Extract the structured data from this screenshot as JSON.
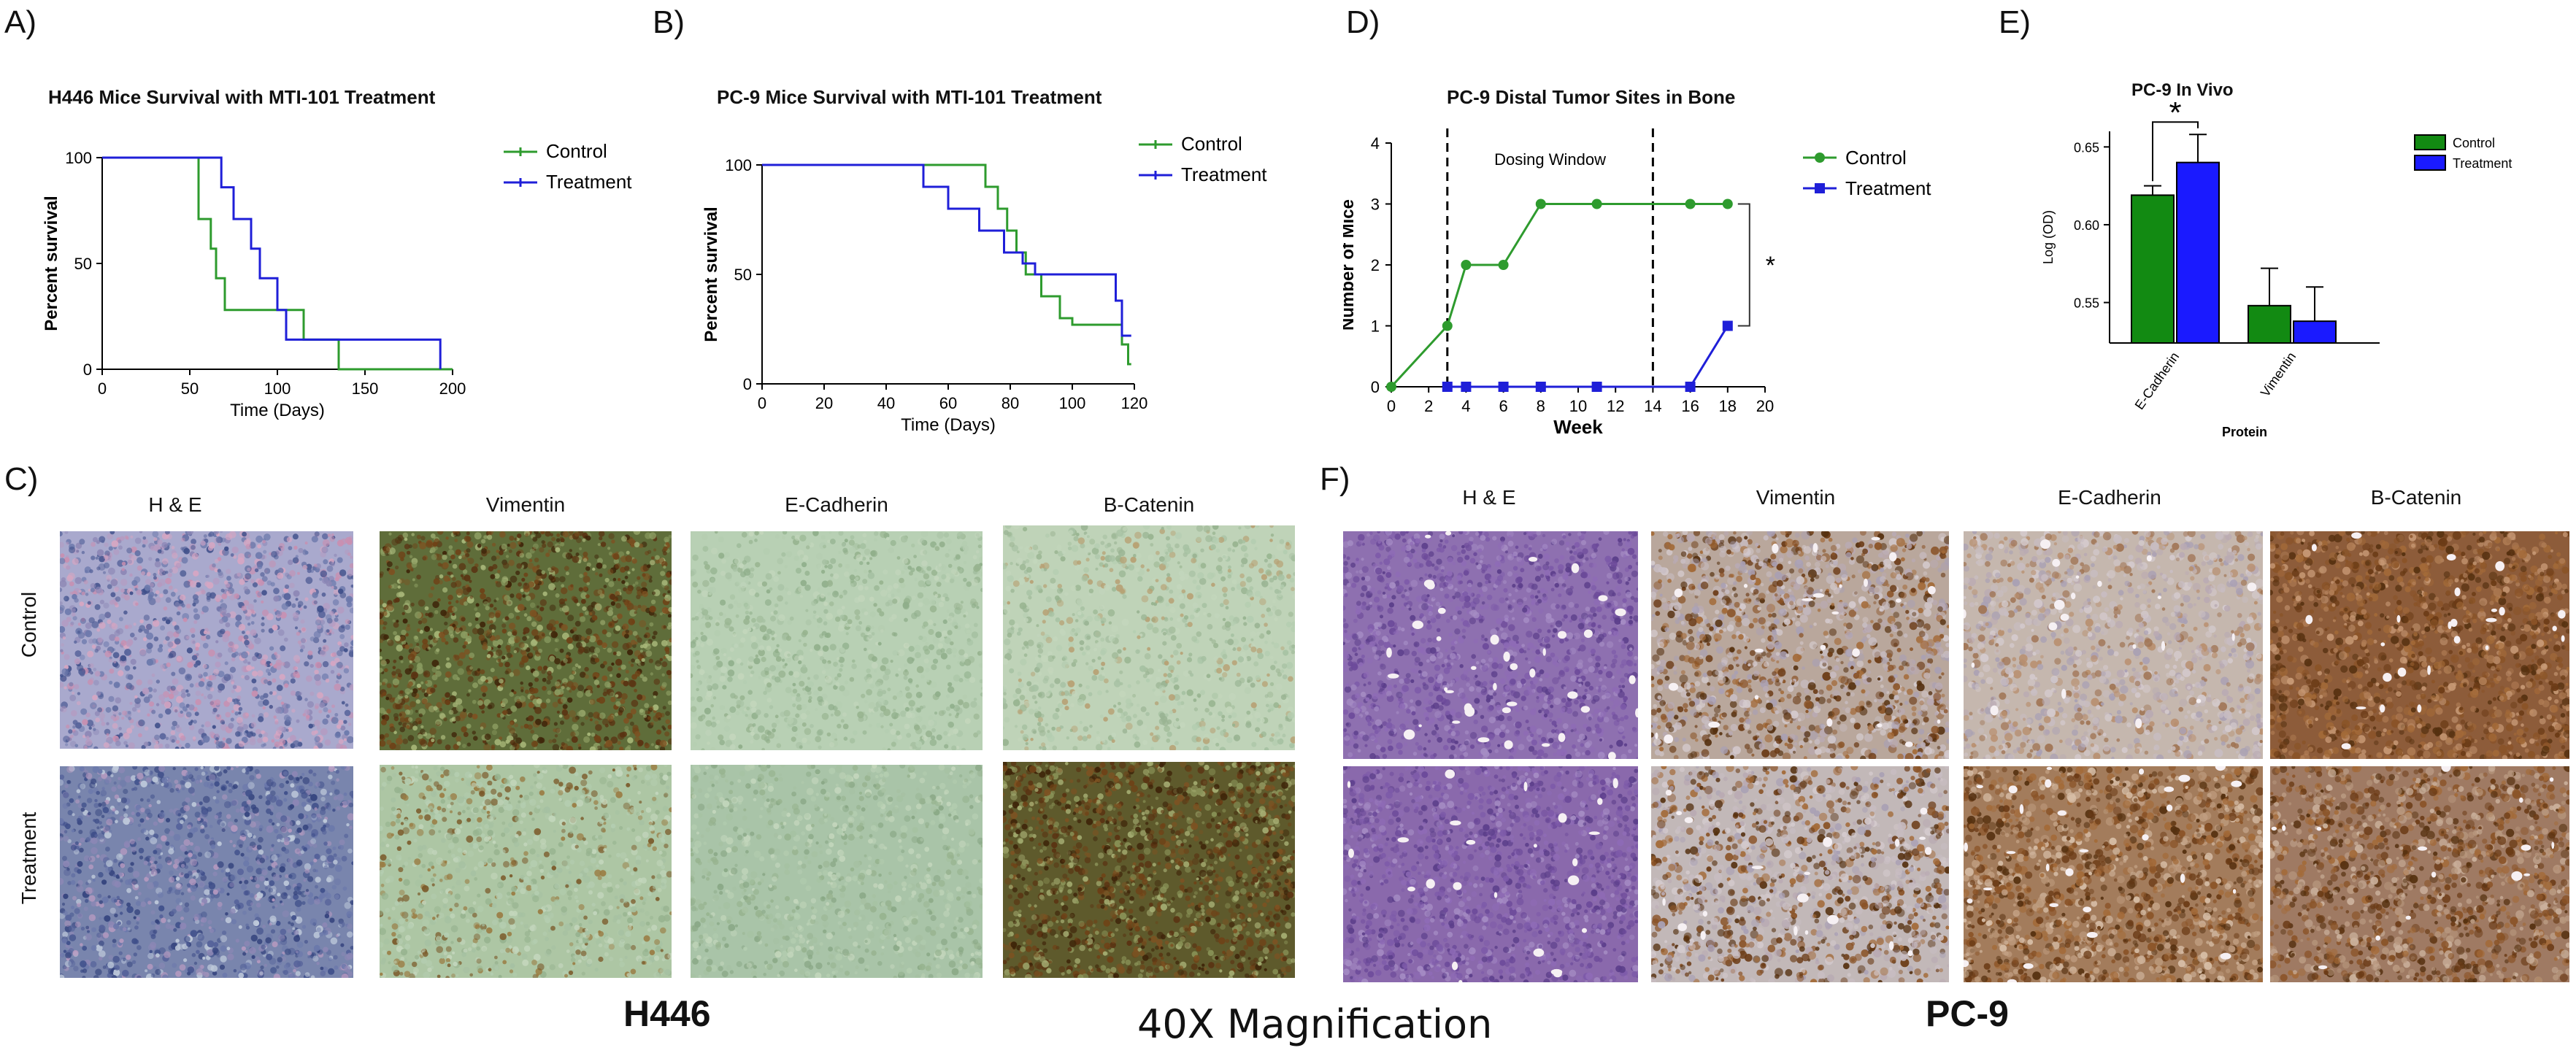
{
  "panels": {
    "A": {
      "letter": "A)",
      "title": "H446 Mice Survival with MTI-101 Treatment"
    },
    "B": {
      "letter": "B)",
      "title": "PC-9 Mice Survival with MTI-101 Treatment"
    },
    "D": {
      "letter": "D)",
      "title": "PC-9 Distal Tumor Sites in Bone"
    },
    "E": {
      "letter": "E)",
      "title": "PC-9 In Vivo"
    },
    "C": {
      "letter": "C)"
    },
    "F": {
      "letter": "F)"
    }
  },
  "colors": {
    "control": "#2e9b2e",
    "treatment": "#1f1fd8",
    "bar_control": "#128a12",
    "bar_treatment": "#1a1aff"
  },
  "chart_data": [
    {
      "id": "A",
      "type": "line",
      "title": "H446 Mice Survival with MTI-101 Treatment",
      "xlabel": "Time (Days)",
      "ylabel": "Percent survival",
      "xlim": [
        0,
        200
      ],
      "ylim": [
        0,
        100
      ],
      "xticks": [
        0,
        50,
        100,
        150,
        200
      ],
      "yticks": [
        0,
        50,
        100
      ],
      "legend_position": "right",
      "series": [
        {
          "name": "Control",
          "step": [
            [
              0,
              100
            ],
            [
              55,
              100
            ],
            [
              55,
              71
            ],
            [
              62,
              71
            ],
            [
              62,
              57
            ],
            [
              65,
              57
            ],
            [
              65,
              43
            ],
            [
              70,
              43
            ],
            [
              70,
              28
            ],
            [
              115,
              28
            ],
            [
              115,
              14
            ],
            [
              135,
              14
            ],
            [
              135,
              0
            ],
            [
              200,
              0
            ]
          ]
        },
        {
          "name": "Treatment",
          "step": [
            [
              0,
              100
            ],
            [
              68,
              100
            ],
            [
              68,
              86
            ],
            [
              75,
              86
            ],
            [
              75,
              71
            ],
            [
              85,
              71
            ],
            [
              85,
              57
            ],
            [
              90,
              57
            ],
            [
              90,
              43
            ],
            [
              100,
              43
            ],
            [
              100,
              28
            ],
            [
              105,
              28
            ],
            [
              105,
              14
            ],
            [
              193,
              14
            ],
            [
              193,
              0
            ]
          ]
        }
      ]
    },
    {
      "id": "B",
      "type": "line",
      "title": "PC-9 Mice Survival with MTI-101 Treatment",
      "xlabel": "Time (Days)",
      "ylabel": "Percent survival",
      "xlim": [
        0,
        120
      ],
      "ylim": [
        0,
        100
      ],
      "xticks": [
        0,
        20,
        40,
        60,
        80,
        100,
        120
      ],
      "yticks": [
        0,
        50,
        100
      ],
      "legend_position": "right",
      "series": [
        {
          "name": "Control",
          "step": [
            [
              0,
              100
            ],
            [
              72,
              100
            ],
            [
              72,
              90
            ],
            [
              76,
              90
            ],
            [
              76,
              80
            ],
            [
              79,
              80
            ],
            [
              79,
              70
            ],
            [
              82,
              70
            ],
            [
              82,
              60
            ],
            [
              85,
              60
            ],
            [
              85,
              50
            ],
            [
              90,
              50
            ],
            [
              90,
              40
            ],
            [
              96,
              40
            ],
            [
              96,
              30
            ],
            [
              100,
              30
            ],
            [
              100,
              27
            ],
            [
              116,
              27
            ],
            [
              116,
              18
            ],
            [
              118,
              18
            ],
            [
              118,
              9
            ],
            [
              119,
              9
            ]
          ]
        },
        {
          "name": "Treatment",
          "step": [
            [
              0,
              100
            ],
            [
              52,
              100
            ],
            [
              52,
              90
            ],
            [
              60,
              90
            ],
            [
              60,
              80
            ],
            [
              70,
              80
            ],
            [
              70,
              70
            ],
            [
              78,
              70
            ],
            [
              78,
              60
            ],
            [
              84,
              60
            ],
            [
              84,
              55
            ],
            [
              88,
              55
            ],
            [
              88,
              50
            ],
            [
              114,
              50
            ],
            [
              114,
              38
            ],
            [
              116,
              38
            ],
            [
              116,
              22
            ],
            [
              119,
              22
            ]
          ]
        }
      ]
    },
    {
      "id": "D",
      "type": "line",
      "title": "PC-9 Distal Tumor Sites in Bone",
      "xlabel": "Week",
      "ylabel": "Number of Mice",
      "xlim": [
        0,
        20
      ],
      "ylim": [
        0,
        4
      ],
      "xticks": [
        0,
        2,
        4,
        6,
        8,
        10,
        12,
        14,
        16,
        18,
        20
      ],
      "yticks": [
        0,
        1,
        2,
        3,
        4
      ],
      "legend_position": "right",
      "annotations": {
        "dosing_window": "Dosing Window",
        "dosing_start": 3,
        "dosing_end": 14,
        "significance": "*"
      },
      "series": [
        {
          "name": "Control",
          "x": [
            0,
            3,
            4,
            6,
            8,
            11,
            16,
            18
          ],
          "y": [
            0,
            1,
            2,
            2,
            3,
            3,
            3,
            3
          ]
        },
        {
          "name": "Treatment",
          "x": [
            3,
            4,
            6,
            8,
            11,
            16,
            18
          ],
          "y": [
            0,
            0,
            0,
            0,
            0,
            0,
            1
          ]
        }
      ]
    },
    {
      "id": "E",
      "type": "bar",
      "title": "PC-9 In Vivo",
      "xlabel": "Protein",
      "ylabel": "Log (OD)",
      "ylim": [
        0.524,
        0.66
      ],
      "yticks": [
        0.55,
        0.6,
        0.65
      ],
      "ytick_labels": [
        "0.55",
        "0.60",
        "0.65"
      ],
      "categories": [
        "E-Cadherin",
        "Vimentin"
      ],
      "legend_position": "top-right",
      "significance": "*",
      "series": [
        {
          "name": "Control",
          "values": [
            0.619,
            0.548
          ],
          "errors": [
            0.006,
            0.024
          ]
        },
        {
          "name": "Treatment",
          "values": [
            0.64,
            0.538
          ],
          "errors": [
            0.018,
            0.022
          ]
        }
      ]
    }
  ],
  "histology": {
    "C": {
      "columns": [
        "H & E",
        "Vimentin",
        "E-Cadherin",
        "B-Catenin"
      ],
      "rows": [
        "Control",
        "Treatment"
      ],
      "caption": "H446"
    },
    "F": {
      "columns": [
        "H & E",
        "Vimentin",
        "E-Cadherin",
        "B-Catenin"
      ],
      "caption": "PC-9"
    },
    "magnification": "40X Magnification"
  }
}
